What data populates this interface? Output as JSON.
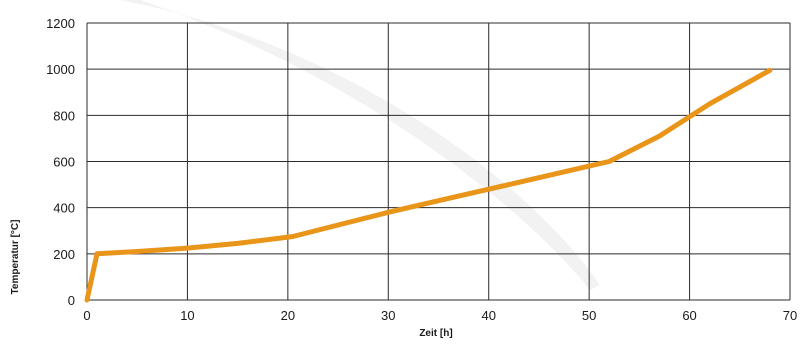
{
  "chart_data": {
    "type": "line",
    "xlabel": "Zeit [h]",
    "ylabel": "Temperatur [°C]",
    "xlim": [
      0,
      70
    ],
    "ylim": [
      0,
      1200
    ],
    "xticks": [
      0,
      10,
      20,
      30,
      40,
      50,
      60,
      70
    ],
    "yticks": [
      0,
      200,
      400,
      600,
      800,
      1000,
      1200
    ],
    "grid": true,
    "legend": "none",
    "series": [
      {
        "color": "#e8951a",
        "x": [
          0,
          1,
          5,
          10,
          15,
          20.5,
          25,
          30,
          35,
          40,
          45,
          50,
          52,
          57,
          62,
          68
        ],
        "y": [
          0,
          200,
          210,
          225,
          245,
          275,
          325,
          380,
          430,
          480,
          530,
          580,
          600,
          710,
          850,
          995
        ]
      }
    ]
  }
}
